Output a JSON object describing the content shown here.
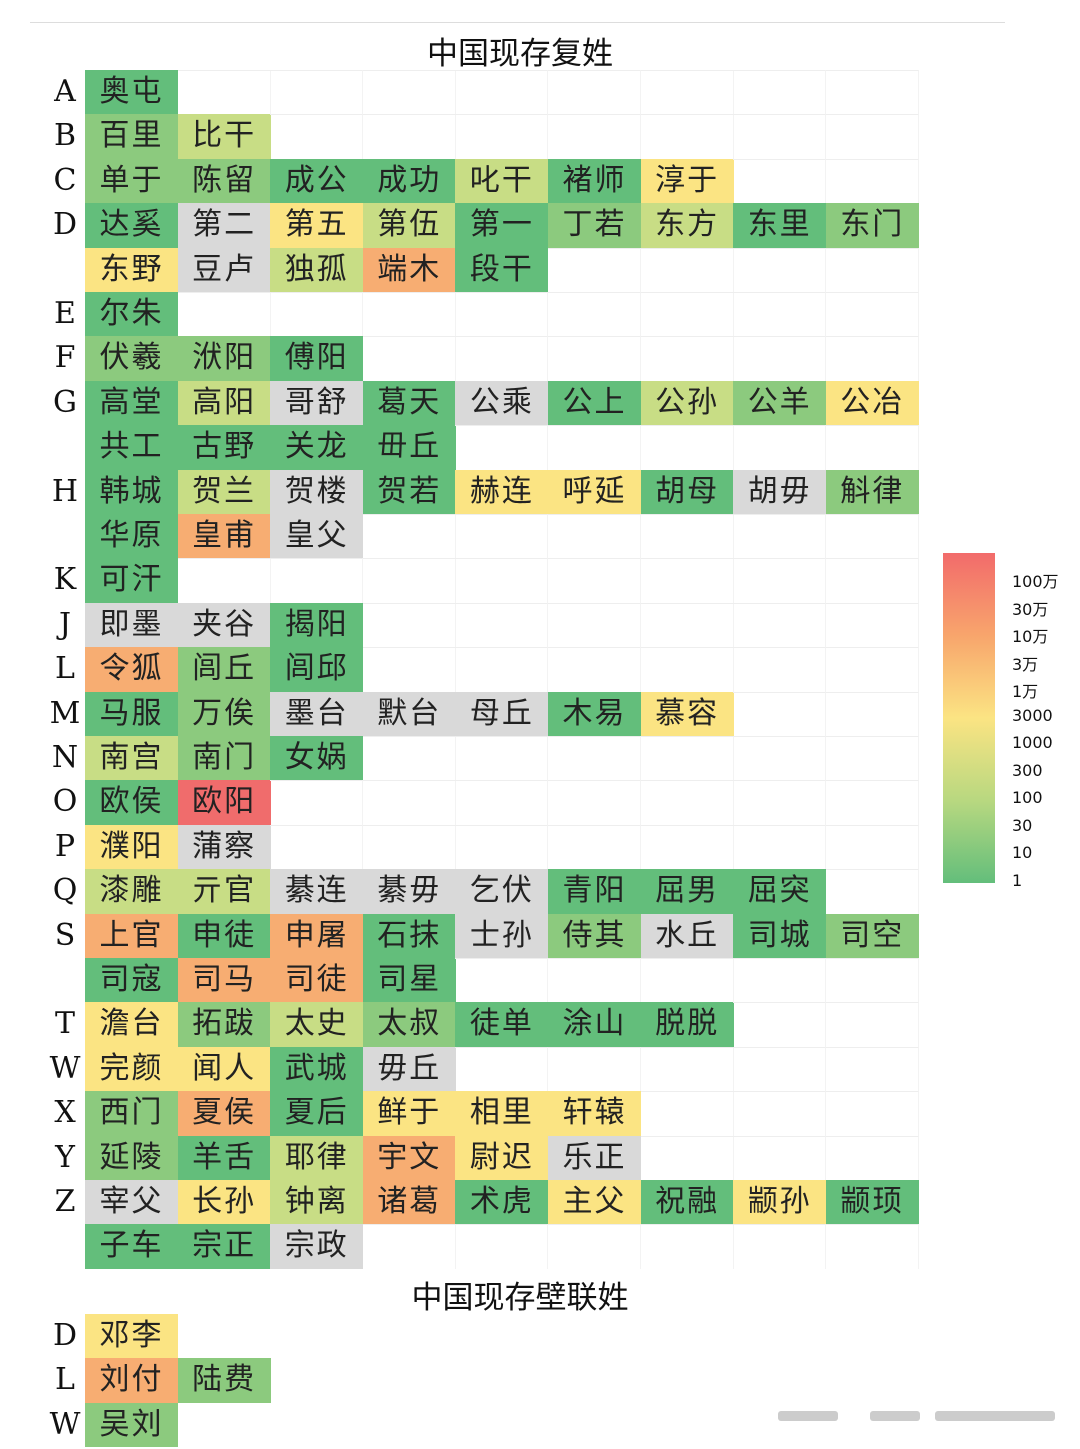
{
  "colors": {
    "dg": "#63be7b",
    "mg": "#8cca7e",
    "lg": "#c8dd85",
    "y": "#fbe483",
    "o": "#f7ad72",
    "r": "#f06c6c",
    "n": "#d9d9d9"
  },
  "chart_data": {
    "type": "heatmap",
    "sections": [
      {
        "title": "中国现存复姓",
        "rows": [
          {
            "letter": "A",
            "cells": [
              [
                "奥屯",
                "dg"
              ]
            ]
          },
          {
            "letter": "B",
            "cells": [
              [
                "百里",
                "mg"
              ],
              [
                "比干",
                "lg"
              ]
            ]
          },
          {
            "letter": "C",
            "cells": [
              [
                "单于",
                "mg"
              ],
              [
                "陈留",
                "mg"
              ],
              [
                "成公",
                "dg"
              ],
              [
                "成功",
                "dg"
              ],
              [
                "叱干",
                "lg"
              ],
              [
                "褚师",
                "dg"
              ],
              [
                "淳于",
                "y"
              ]
            ]
          },
          {
            "letter": "D",
            "cells": [
              [
                "达奚",
                "dg"
              ],
              [
                "第二",
                "n"
              ],
              [
                "第五",
                "y"
              ],
              [
                "第伍",
                "lg"
              ],
              [
                "第一",
                "dg"
              ],
              [
                "丁若",
                "mg"
              ],
              [
                "东方",
                "lg"
              ],
              [
                "东里",
                "dg"
              ],
              [
                "东门",
                "mg"
              ]
            ]
          },
          {
            "letter": "",
            "cells": [
              [
                "东野",
                "y"
              ],
              [
                "豆卢",
                "n"
              ],
              [
                "独孤",
                "lg"
              ],
              [
                "端木",
                "o"
              ],
              [
                "段干",
                "dg"
              ]
            ]
          },
          {
            "letter": "E",
            "cells": [
              [
                "尔朱",
                "dg"
              ]
            ]
          },
          {
            "letter": "F",
            "cells": [
              [
                "伏羲",
                "mg"
              ],
              [
                "洑阳",
                "mg"
              ],
              [
                "傅阳",
                "dg"
              ]
            ]
          },
          {
            "letter": "G",
            "cells": [
              [
                "高堂",
                "dg"
              ],
              [
                "高阳",
                "lg"
              ],
              [
                "哥舒",
                "n"
              ],
              [
                "葛天",
                "dg"
              ],
              [
                "公乘",
                "n"
              ],
              [
                "公上",
                "dg"
              ],
              [
                "公孙",
                "lg"
              ],
              [
                "公羊",
                "mg"
              ],
              [
                "公冶",
                "y"
              ]
            ]
          },
          {
            "letter": "",
            "cells": [
              [
                "共工",
                "dg"
              ],
              [
                "古野",
                "dg"
              ],
              [
                "关龙",
                "dg"
              ],
              [
                "毌丘",
                "dg"
              ]
            ]
          },
          {
            "letter": "H",
            "cells": [
              [
                "韩城",
                "dg"
              ],
              [
                "贺兰",
                "lg"
              ],
              [
                "贺楼",
                "n"
              ],
              [
                "贺若",
                "dg"
              ],
              [
                "赫连",
                "y"
              ],
              [
                "呼延",
                "y"
              ],
              [
                "胡母",
                "dg"
              ],
              [
                "胡毋",
                "n"
              ],
              [
                "斛律",
                "mg"
              ]
            ]
          },
          {
            "letter": "",
            "cells": [
              [
                "华原",
                "dg"
              ],
              [
                "皇甫",
                "o"
              ],
              [
                "皇父",
                "n"
              ]
            ]
          },
          {
            "letter": "K",
            "cells": [
              [
                "可汗",
                "dg"
              ]
            ]
          },
          {
            "letter": "J",
            "cells": [
              [
                "即墨",
                "n"
              ],
              [
                "夹谷",
                "n"
              ],
              [
                "揭阳",
                "dg"
              ]
            ]
          },
          {
            "letter": "L",
            "cells": [
              [
                "令狐",
                "o"
              ],
              [
                "闾丘",
                "mg"
              ],
              [
                "闾邱",
                "dg"
              ]
            ]
          },
          {
            "letter": "M",
            "cells": [
              [
                "马服",
                "dg"
              ],
              [
                "万俟",
                "mg"
              ],
              [
                "墨台",
                "n"
              ],
              [
                "默台",
                "n"
              ],
              [
                "母丘",
                "n"
              ],
              [
                "木易",
                "dg"
              ],
              [
                "慕容",
                "y"
              ]
            ]
          },
          {
            "letter": "N",
            "cells": [
              [
                "南宫",
                "lg"
              ],
              [
                "南门",
                "mg"
              ],
              [
                "女娲",
                "dg"
              ]
            ]
          },
          {
            "letter": "O",
            "cells": [
              [
                "欧侯",
                "dg"
              ],
              [
                "欧阳",
                "r"
              ]
            ]
          },
          {
            "letter": "P",
            "cells": [
              [
                "濮阳",
                "y"
              ],
              [
                "蒲察",
                "n"
              ]
            ]
          },
          {
            "letter": "Q",
            "cells": [
              [
                "漆雕",
                "lg"
              ],
              [
                "亓官",
                "lg"
              ],
              [
                "綦连",
                "n"
              ],
              [
                "綦毋",
                "n"
              ],
              [
                "乞伏",
                "n"
              ],
              [
                "青阳",
                "dg"
              ],
              [
                "屈男",
                "dg"
              ],
              [
                "屈突",
                "dg"
              ]
            ]
          },
          {
            "letter": "S",
            "cells": [
              [
                "上官",
                "o"
              ],
              [
                "申徒",
                "dg"
              ],
              [
                "申屠",
                "o"
              ],
              [
                "石抹",
                "dg"
              ],
              [
                "士孙",
                "n"
              ],
              [
                "侍其",
                "mg"
              ],
              [
                "水丘",
                "n"
              ],
              [
                "司城",
                "dg"
              ],
              [
                "司空",
                "mg"
              ]
            ]
          },
          {
            "letter": "",
            "cells": [
              [
                "司寇",
                "dg"
              ],
              [
                "司马",
                "o"
              ],
              [
                "司徒",
                "o"
              ],
              [
                "司星",
                "dg"
              ]
            ]
          },
          {
            "letter": "T",
            "cells": [
              [
                "澹台",
                "y"
              ],
              [
                "拓跋",
                "mg"
              ],
              [
                "太史",
                "lg"
              ],
              [
                "太叔",
                "mg"
              ],
              [
                "徒单",
                "dg"
              ],
              [
                "涂山",
                "dg"
              ],
              [
                "脱脱",
                "dg"
              ]
            ]
          },
          {
            "letter": "W",
            "cells": [
              [
                "完颜",
                "y"
              ],
              [
                "闻人",
                "y"
              ],
              [
                "武城",
                "dg"
              ],
              [
                "毋丘",
                "n"
              ]
            ]
          },
          {
            "letter": "X",
            "cells": [
              [
                "西门",
                "mg"
              ],
              [
                "夏侯",
                "o"
              ],
              [
                "夏后",
                "dg"
              ],
              [
                "鲜于",
                "y"
              ],
              [
                "相里",
                "y"
              ],
              [
                "轩辕",
                "y"
              ]
            ]
          },
          {
            "letter": "Y",
            "cells": [
              [
                "延陵",
                "mg"
              ],
              [
                "羊舌",
                "dg"
              ],
              [
                "耶律",
                "lg"
              ],
              [
                "宇文",
                "o"
              ],
              [
                "尉迟",
                "y"
              ],
              [
                "乐正",
                "n"
              ]
            ]
          },
          {
            "letter": "Z",
            "cells": [
              [
                "宰父",
                "n"
              ],
              [
                "长孙",
                "y"
              ],
              [
                "钟离",
                "lg"
              ],
              [
                "诸葛",
                "o"
              ],
              [
                "术虎",
                "dg"
              ],
              [
                "主父",
                "y"
              ],
              [
                "祝融",
                "dg"
              ],
              [
                "颛孙",
                "y"
              ],
              [
                "颛顼",
                "dg"
              ]
            ]
          },
          {
            "letter": "",
            "cells": [
              [
                "子车",
                "dg"
              ],
              [
                "宗正",
                "dg"
              ],
              [
                "宗政",
                "n"
              ]
            ]
          }
        ]
      },
      {
        "title": "中国现存壁联姓",
        "rows": [
          {
            "letter": "D",
            "cells": [
              [
                "邓李",
                "y"
              ]
            ]
          },
          {
            "letter": "L",
            "cells": [
              [
                "刘付",
                "o"
              ],
              [
                "陆费",
                "mg"
              ]
            ]
          },
          {
            "letter": "W",
            "cells": [
              [
                "吴刘",
                "mg"
              ]
            ]
          }
        ]
      }
    ],
    "legend": {
      "labels": [
        "100万",
        "30万",
        "10万",
        "3万",
        "1万",
        "3000",
        "1000",
        "300",
        "100",
        "30",
        "10",
        "1"
      ],
      "gradient": [
        "#f26b6b",
        "#f8a56c",
        "#fbe483",
        "#b8d880",
        "#63be7b"
      ]
    }
  }
}
